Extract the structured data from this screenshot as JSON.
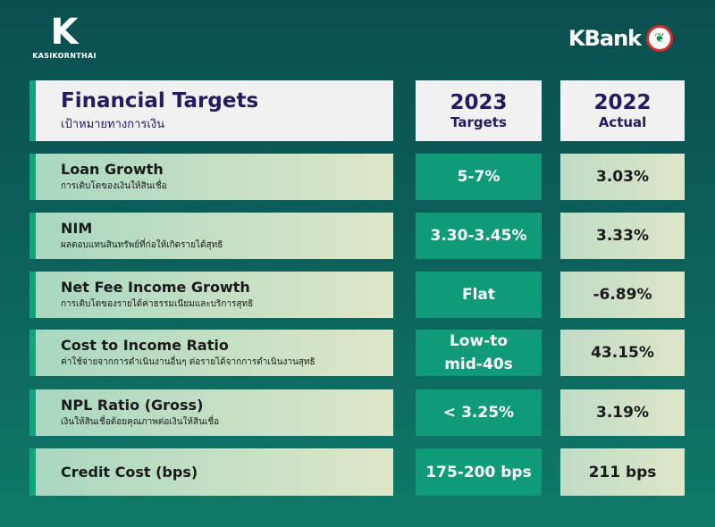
{
  "logos": {
    "left_text": "KASIKORNTHAI",
    "right_text": "KBank"
  },
  "header": {
    "title": "Financial Targets",
    "subtitle": "เป้าหมายทางการเงิน",
    "col2_year": "2023",
    "col2_label": "Targets",
    "col3_year": "2022",
    "col3_label": "Actual"
  },
  "rows": [
    {
      "en": "Loan Growth",
      "th": "การเติบโตของเงินให้สินเชื่อ",
      "target": "5-7%",
      "actual": "3.03%"
    },
    {
      "en": "NIM",
      "th": "ผลตอบแทนสินทรัพย์ที่ก่อให้เกิดรายได้สุทธิ",
      "target": "3.30-3.45%",
      "actual": "3.33%"
    },
    {
      "en": "Net Fee Income Growth",
      "th": "การเติบโตของรายได้ค่าธรรมเนียมและบริการสุทธิ",
      "target": "Flat",
      "actual": "-6.89%"
    },
    {
      "en": "Cost to Income Ratio",
      "th": "ค่าใช้จ่ายจากการดำเนินงานอื่นๆ ต่อรายได้จากการดำเนินงานสุทธิ",
      "target": "Low-to mid-40s",
      "actual": "43.15%"
    },
    {
      "en": "NPL Ratio (Gross)",
      "th": "เงินให้สินเชื่อด้อยคุณภาพต่อเงินให้สินเชื่อ",
      "target": "< 3.25%",
      "actual": "3.19%"
    },
    {
      "en": "Credit Cost (bps)",
      "th": "",
      "target": "175-200 bps",
      "actual": "211 bps"
    }
  ]
}
